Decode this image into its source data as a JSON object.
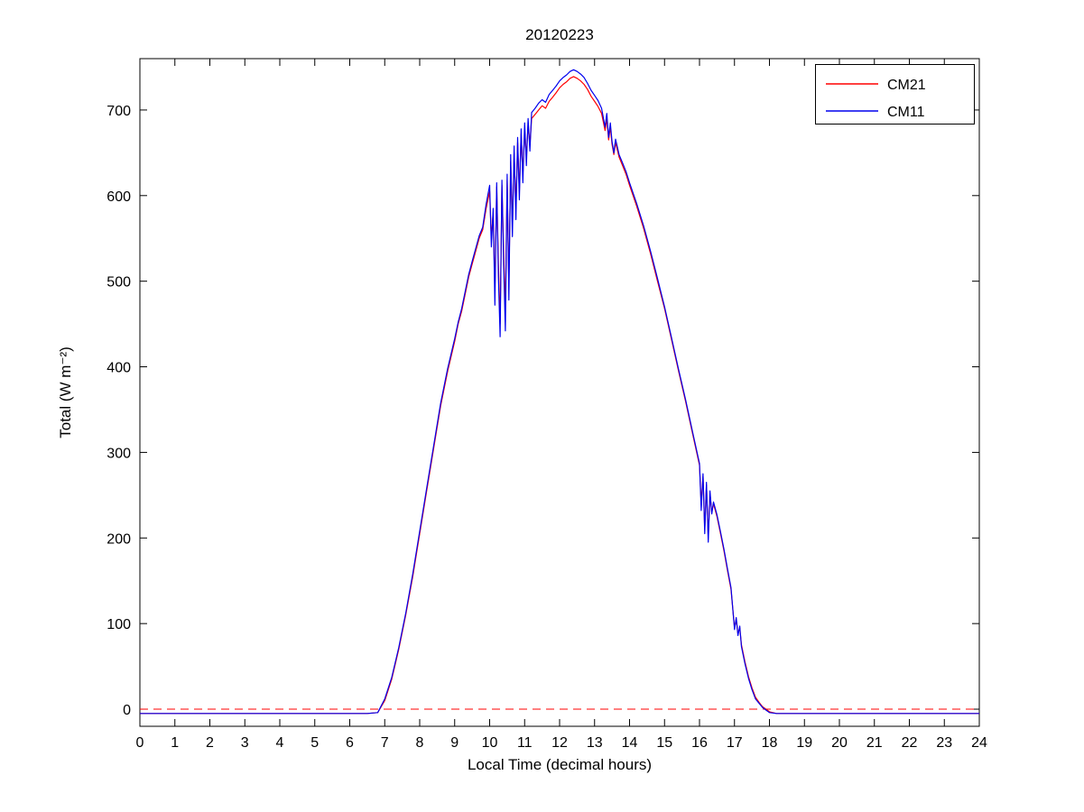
{
  "figure": {
    "window_title": "20120223"
  },
  "chart_data": {
    "type": "line",
    "title": "20120223",
    "xlabel": "Local Time (decimal hours)",
    "ylabel": "Total (W m⁻²)",
    "xlim": [
      0,
      24
    ],
    "ylim": [
      -20,
      760
    ],
    "xticks": [
      0,
      1,
      2,
      3,
      4,
      5,
      6,
      7,
      8,
      9,
      10,
      11,
      12,
      13,
      14,
      15,
      16,
      17,
      18,
      19,
      20,
      21,
      22,
      23,
      24
    ],
    "yticks": [
      0,
      100,
      200,
      300,
      400,
      500,
      600,
      700
    ],
    "grid": false,
    "legend_position": "top-right",
    "x": [
      0,
      0.5,
      1,
      1.5,
      2,
      2.5,
      3,
      3.5,
      4,
      4.5,
      5,
      5.5,
      6,
      6.5,
      6.8,
      7,
      7.2,
      7.4,
      7.6,
      7.8,
      8,
      8.2,
      8.4,
      8.6,
      8.8,
      9,
      9.1,
      9.2,
      9.3,
      9.4,
      9.5,
      9.6,
      9.7,
      9.8,
      9.9,
      10,
      10.05,
      10.1,
      10.15,
      10.2,
      10.25,
      10.3,
      10.35,
      10.4,
      10.45,
      10.5,
      10.55,
      10.6,
      10.65,
      10.7,
      10.75,
      10.8,
      10.85,
      10.9,
      10.95,
      11,
      11.05,
      11.1,
      11.15,
      11.2,
      11.3,
      11.4,
      11.5,
      11.6,
      11.7,
      11.8,
      11.9,
      12,
      12.1,
      12.2,
      12.3,
      12.4,
      12.5,
      12.6,
      12.7,
      12.8,
      12.9,
      13,
      13.1,
      13.2,
      13.3,
      13.35,
      13.4,
      13.45,
      13.5,
      13.55,
      13.6,
      13.7,
      13.8,
      13.9,
      14,
      14.2,
      14.4,
      14.6,
      14.8,
      15,
      15.2,
      15.4,
      15.6,
      15.8,
      16,
      16.05,
      16.1,
      16.15,
      16.2,
      16.25,
      16.3,
      16.35,
      16.4,
      16.5,
      16.6,
      16.7,
      16.8,
      16.9,
      17,
      17.05,
      17.1,
      17.15,
      17.2,
      17.3,
      17.4,
      17.5,
      17.6,
      17.7,
      17.8,
      17.9,
      18,
      18.2,
      18.5,
      19,
      19.5,
      20,
      20.5,
      21,
      21.5,
      22,
      22.5,
      23,
      23.5,
      24
    ],
    "series": [
      {
        "name": "CM21",
        "color": "#ff0000",
        "style": "solid",
        "values": [
          -5,
          -5,
          -5,
          -5,
          -5,
          -5,
          -5,
          -5,
          -5,
          -5,
          -5,
          -5,
          -5,
          -5,
          -4,
          10,
          35,
          70,
          110,
          155,
          205,
          255,
          305,
          355,
          395,
          430,
          450,
          465,
          485,
          505,
          520,
          535,
          550,
          560,
          585,
          605,
          550,
          580,
          490,
          610,
          520,
          450,
          612,
          535,
          465,
          618,
          495,
          640,
          565,
          650,
          585,
          662,
          605,
          672,
          625,
          678,
          645,
          682,
          660,
          690,
          695,
          700,
          705,
          702,
          710,
          715,
          720,
          726,
          730,
          733,
          737,
          739,
          737,
          734,
          730,
          724,
          716,
          710,
          704,
          696,
          676,
          690,
          665,
          680,
          660,
          648,
          662,
          645,
          635,
          625,
          612,
          588,
          562,
          532,
          500,
          468,
          432,
          395,
          360,
          322,
          285,
          240,
          272,
          210,
          262,
          200,
          252,
          230,
          240,
          225,
          205,
          185,
          162,
          140,
          95,
          105,
          88,
          95,
          75,
          55,
          38,
          25,
          14,
          8,
          3,
          0,
          -3,
          -5,
          -5,
          -5,
          -5,
          -5,
          -5,
          -5,
          -5,
          -5,
          -5,
          -5,
          -5,
          -5
        ]
      },
      {
        "name": "CM11",
        "color": "#0000ee",
        "style": "solid",
        "values": [
          -5,
          -5,
          -5,
          -5,
          -5,
          -5,
          -5,
          -5,
          -5,
          -5,
          -5,
          -5,
          -5,
          -5,
          -4,
          12,
          37,
          72,
          112,
          158,
          208,
          258,
          308,
          358,
          398,
          433,
          452,
          468,
          488,
          508,
          523,
          538,
          553,
          563,
          590,
          612,
          540,
          585,
          472,
          615,
          505,
          435,
          618,
          520,
          442,
          625,
          478,
          648,
          552,
          658,
          572,
          668,
          595,
          678,
          615,
          685,
          635,
          690,
          652,
          697,
          702,
          708,
          712,
          709,
          718,
          723,
          728,
          734,
          738,
          741,
          745,
          747,
          745,
          742,
          738,
          731,
          723,
          717,
          711,
          702,
          680,
          696,
          668,
          685,
          663,
          650,
          666,
          648,
          638,
          628,
          615,
          591,
          565,
          535,
          503,
          470,
          434,
          397,
          362,
          324,
          287,
          232,
          275,
          205,
          265,
          195,
          255,
          228,
          242,
          227,
          207,
          187,
          164,
          142,
          93,
          107,
          86,
          97,
          73,
          53,
          36,
          23,
          12,
          7,
          2,
          -1,
          -4,
          -5,
          -5,
          -5,
          -5,
          -5,
          -5,
          -5,
          -5,
          -5,
          -5,
          -5,
          -5,
          -5
        ]
      }
    ],
    "reference_lines": [
      {
        "y": 0,
        "color": "#ff0000",
        "style": "dashed"
      }
    ]
  }
}
